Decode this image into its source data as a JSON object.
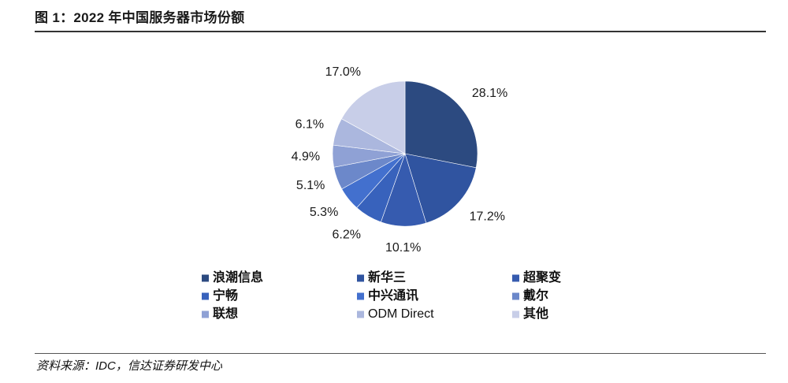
{
  "title": "图 1：2022 年中国服务器市场份额",
  "source": "资料来源：IDC，信达证券研发中心",
  "chart_data": {
    "type": "pie",
    "categories": [
      "浪潮信息",
      "新华三",
      "超聚变",
      "宁畅",
      "中兴通讯",
      "戴尔",
      "联想",
      "ODM Direct",
      "其他"
    ],
    "values": [
      28.1,
      17.2,
      10.1,
      6.2,
      5.3,
      5.1,
      4.9,
      6.1,
      17.0
    ],
    "data_labels": [
      "28.1%",
      "17.2%",
      "10.1%",
      "6.2%",
      "5.3%",
      "5.1%",
      "4.9%",
      "6.1%",
      "17.0%"
    ],
    "colors": [
      "#2C4A80",
      "#3054A0",
      "#365BAF",
      "#3862BC",
      "#4370CE",
      "#6C88CA",
      "#8FA1D5",
      "#ABB7DE",
      "#C8CEE8"
    ],
    "legend_position": "bottom",
    "start": "top, clockwise"
  }
}
